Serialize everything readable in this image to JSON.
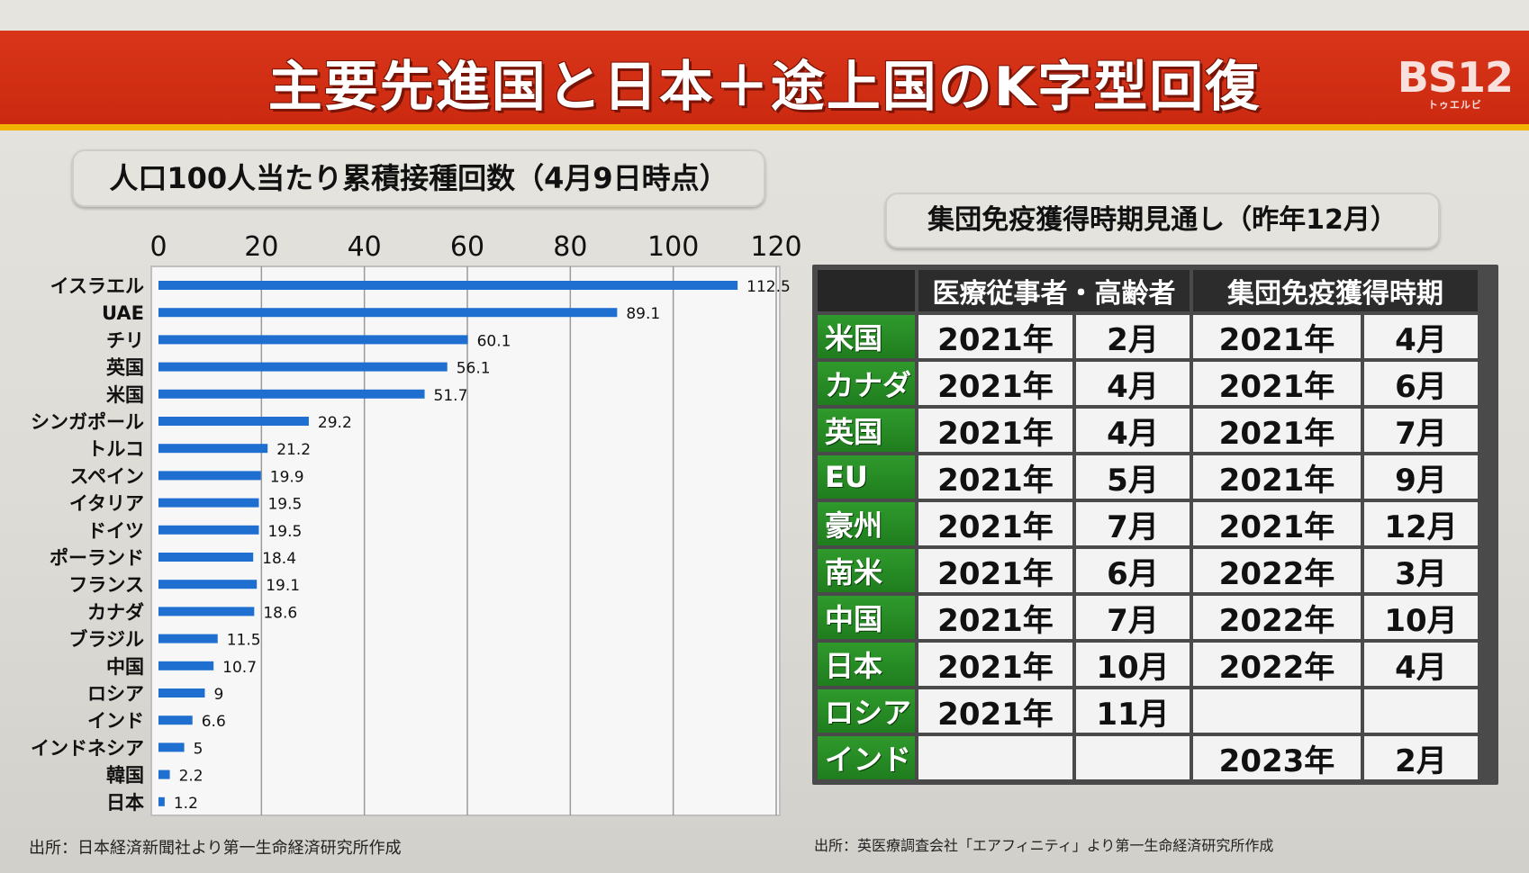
{
  "banner": {
    "title": "主要先進国と日本＋途上国のK字型回復",
    "logo_main": "BS12",
    "logo_sub": "トゥエルビ"
  },
  "chart_header": "人口100人当たり累積接種回数（4月9日時点）",
  "chart_source": "出所：日本経済新聞社より第一生命経済研究所作成",
  "chart_data": {
    "type": "bar",
    "orientation": "horizontal",
    "title": "人口100人当たり累積接種回数（4月9日時点）",
    "x_unit": "(回)",
    "xlim": [
      0,
      120
    ],
    "x_ticks": [
      0,
      20,
      40,
      60,
      80,
      100,
      120
    ],
    "grid": true,
    "categories": [
      "イスラエル",
      "UAE",
      "チリ",
      "英国",
      "米国",
      "シンガポール",
      "トルコ",
      "スペイン",
      "イタリア",
      "ドイツ",
      "ポーランド",
      "フランス",
      "カナダ",
      "ブラジル",
      "中国",
      "ロシア",
      "インド",
      "インドネシア",
      "韓国",
      "日本"
    ],
    "values": [
      112.5,
      89.1,
      60.1,
      56.1,
      51.7,
      29.2,
      21.2,
      19.9,
      19.5,
      19.5,
      18.4,
      19.1,
      18.6,
      11.5,
      10.7,
      9,
      6.6,
      5,
      2.2,
      1.2
    ],
    "value_labels": [
      "112.5",
      "89.1",
      "60.1",
      "56.1",
      "51.7",
      "29.2",
      "21.2",
      "19.9",
      "19.5",
      "19.5",
      "18.4",
      "19.1",
      "18.6",
      "11.5",
      "10.7",
      "9",
      "6.6",
      "5",
      "2.2",
      "1.2"
    ],
    "bar_color": "#1f6fd0"
  },
  "table": {
    "title": "集団免疫獲得時期見通し（昨年12月）",
    "source": "出所：英医療調査会社「エアフィニティ」より第一生命経済研究所作成",
    "headers": [
      "医療従事者・高齢者",
      "集団免疫獲得時期"
    ],
    "rows": [
      {
        "country": "米国",
        "y1": "2021年",
        "m1": "2月",
        "y2": "2021年",
        "m2": "4月"
      },
      {
        "country": "カナダ",
        "y1": "2021年",
        "m1": "4月",
        "y2": "2021年",
        "m2": "6月"
      },
      {
        "country": "英国",
        "y1": "2021年",
        "m1": "4月",
        "y2": "2021年",
        "m2": "7月"
      },
      {
        "country": "EU",
        "y1": "2021年",
        "m1": "5月",
        "y2": "2021年",
        "m2": "9月"
      },
      {
        "country": "豪州",
        "y1": "2021年",
        "m1": "7月",
        "y2": "2021年",
        "m2": "12月"
      },
      {
        "country": "南米",
        "y1": "2021年",
        "m1": "6月",
        "y2": "2022年",
        "m2": "3月"
      },
      {
        "country": "中国",
        "y1": "2021年",
        "m1": "7月",
        "y2": "2022年",
        "m2": "10月"
      },
      {
        "country": "日本",
        "y1": "2021年",
        "m1": "10月",
        "y2": "2022年",
        "m2": "4月"
      },
      {
        "country": "ロシア",
        "y1": "2021年",
        "m1": "11月",
        "y2": "",
        "m2": ""
      },
      {
        "country": "インド",
        "y1": "",
        "m1": "",
        "y2": "2023年",
        "m2": "2月"
      }
    ],
    "colors": {
      "country_bg": "#1f7d1e",
      "header_bg": "#2c2c2c",
      "cell_bg": "#f3f3f3"
    }
  }
}
